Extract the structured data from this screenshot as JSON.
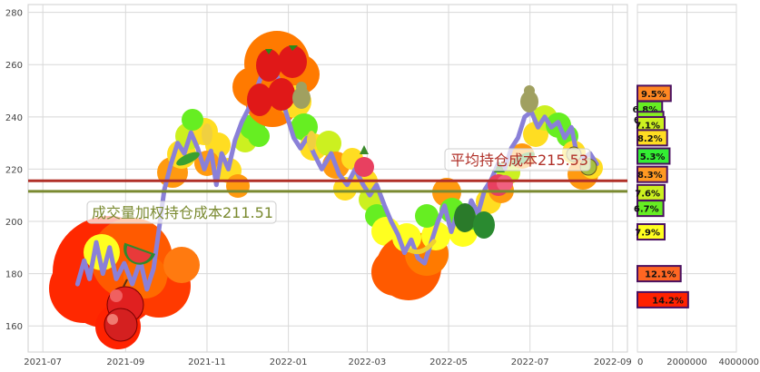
{
  "chart_data": [
    {
      "type": "line",
      "x_ticks": [
        "2021-07",
        "2021-09",
        "2021-11",
        "2022-01",
        "2022-03",
        "2022-05",
        "2022-07",
        "2022-09"
      ],
      "y_ticks": [
        160,
        180,
        200,
        220,
        240,
        260,
        280
      ],
      "xlim": [
        "2021-06-20",
        "2022-09-12"
      ],
      "ylim": [
        150,
        283
      ],
      "grid": true,
      "price_series": {
        "color": "#8a80d8",
        "points": [
          [
            "2021-07-27",
            176
          ],
          [
            "2021-08-01",
            185
          ],
          [
            "2021-08-05",
            178
          ],
          [
            "2021-08-10",
            192
          ],
          [
            "2021-08-15",
            180
          ],
          [
            "2021-08-20",
            190
          ],
          [
            "2021-08-25",
            178
          ],
          [
            "2021-08-31",
            184
          ],
          [
            "2021-09-06",
            176
          ],
          [
            "2021-09-12",
            185
          ],
          [
            "2021-09-17",
            174
          ],
          [
            "2021-09-22",
            182
          ],
          [
            "2021-09-26",
            197
          ],
          [
            "2021-09-30",
            212
          ],
          [
            "2021-10-05",
            222
          ],
          [
            "2021-10-10",
            230
          ],
          [
            "2021-10-15",
            226
          ],
          [
            "2021-10-20",
            234
          ],
          [
            "2021-10-25",
            228
          ],
          [
            "2021-10-30",
            220
          ],
          [
            "2021-11-04",
            227
          ],
          [
            "2021-11-08",
            214
          ],
          [
            "2021-11-12",
            226
          ],
          [
            "2021-11-17",
            220
          ],
          [
            "2021-11-22",
            231
          ],
          [
            "2021-11-27",
            238
          ],
          [
            "2021-12-02",
            243
          ],
          [
            "2021-12-07",
            249
          ],
          [
            "2021-12-12",
            256
          ],
          [
            "2021-12-18",
            262
          ],
          [
            "2021-12-24",
            255
          ],
          [
            "2021-12-30",
            242
          ],
          [
            "2022-01-05",
            232
          ],
          [
            "2022-01-10",
            228
          ],
          [
            "2022-01-15",
            232
          ],
          [
            "2022-01-20",
            226
          ],
          [
            "2022-01-26",
            220
          ],
          [
            "2022-02-02",
            226
          ],
          [
            "2022-02-08",
            218
          ],
          [
            "2022-02-14",
            214
          ],
          [
            "2022-02-20",
            220
          ],
          [
            "2022-02-26",
            214
          ],
          [
            "2022-03-03",
            210
          ],
          [
            "2022-03-08",
            214
          ],
          [
            "2022-03-14",
            206
          ],
          [
            "2022-03-19",
            200
          ],
          [
            "2022-03-24",
            195
          ],
          [
            "2022-03-29",
            188
          ],
          [
            "2022-04-03",
            193
          ],
          [
            "2022-04-08",
            186
          ],
          [
            "2022-04-13",
            184
          ],
          [
            "2022-04-18",
            192
          ],
          [
            "2022-04-23",
            200
          ],
          [
            "2022-04-28",
            206
          ],
          [
            "2022-05-03",
            196
          ],
          [
            "2022-05-08",
            204
          ],
          [
            "2022-05-13",
            199
          ],
          [
            "2022-05-18",
            208
          ],
          [
            "2022-05-23",
            203
          ],
          [
            "2022-05-28",
            212
          ],
          [
            "2022-06-02",
            216
          ],
          [
            "2022-06-07",
            222
          ],
          [
            "2022-06-12",
            220
          ],
          [
            "2022-06-17",
            228
          ],
          [
            "2022-06-22",
            232
          ],
          [
            "2022-06-27",
            240
          ],
          [
            "2022-07-02",
            242
          ],
          [
            "2022-07-07",
            236
          ],
          [
            "2022-07-12",
            240
          ],
          [
            "2022-07-17",
            236
          ],
          [
            "2022-07-22",
            238
          ],
          [
            "2022-07-27",
            232
          ],
          [
            "2022-08-01",
            236
          ],
          [
            "2022-08-05",
            226
          ],
          [
            "2022-08-10",
            224
          ],
          [
            "2022-08-15",
            226
          ],
          [
            "2022-08-20",
            222
          ]
        ]
      },
      "reference_lines": [
        {
          "label": "平均持仓成本215.53",
          "value": 215.53,
          "color": "#b03028"
        },
        {
          "label": "成交量加权持仓成本211.51",
          "value": 211.51,
          "color": "#7a8a30"
        }
      ]
    },
    {
      "type": "bar",
      "orientation": "horizontal",
      "x_ticks": [
        "0",
        "2000000",
        "4000000"
      ],
      "xlim": [
        0,
        4000000
      ],
      "bars": [
        {
          "price": 243,
          "value": 1000000,
          "label": "6.8%",
          "color": "#66ee22"
        },
        {
          "price": 239,
          "value": 1050000,
          "label": "6.4%",
          "color": "#88ee22"
        },
        {
          "price": 237,
          "value": 1100000,
          "label": "7.1%",
          "color": "#ccf020"
        },
        {
          "price": 232,
          "value": 1200000,
          "label": "8.2%",
          "color": "#ffdd22"
        },
        {
          "price": 225,
          "value": 1300000,
          "label": "5.3%",
          "color": "#33ee33"
        },
        {
          "price": 218,
          "value": 1200000,
          "label": "8.3%",
          "color": "#ff9922"
        },
        {
          "price": 211,
          "value": 1100000,
          "label": "7.6%",
          "color": "#ccf020"
        },
        {
          "price": 205,
          "value": 1050000,
          "label": "6.7%",
          "color": "#66ee22"
        },
        {
          "price": 196,
          "value": 1100000,
          "label": "7.9%",
          "color": "#ffff20"
        },
        {
          "price": 180,
          "value": 1750000,
          "label": "12.1%",
          "color": "#ff6622"
        },
        {
          "price": 170,
          "value": 2050000,
          "label": "14.2%",
          "color": "#ff2200"
        },
        {
          "price": 249,
          "value": 1350000,
          "label": "9.5%",
          "color": "#ff8822"
        }
      ]
    }
  ]
}
